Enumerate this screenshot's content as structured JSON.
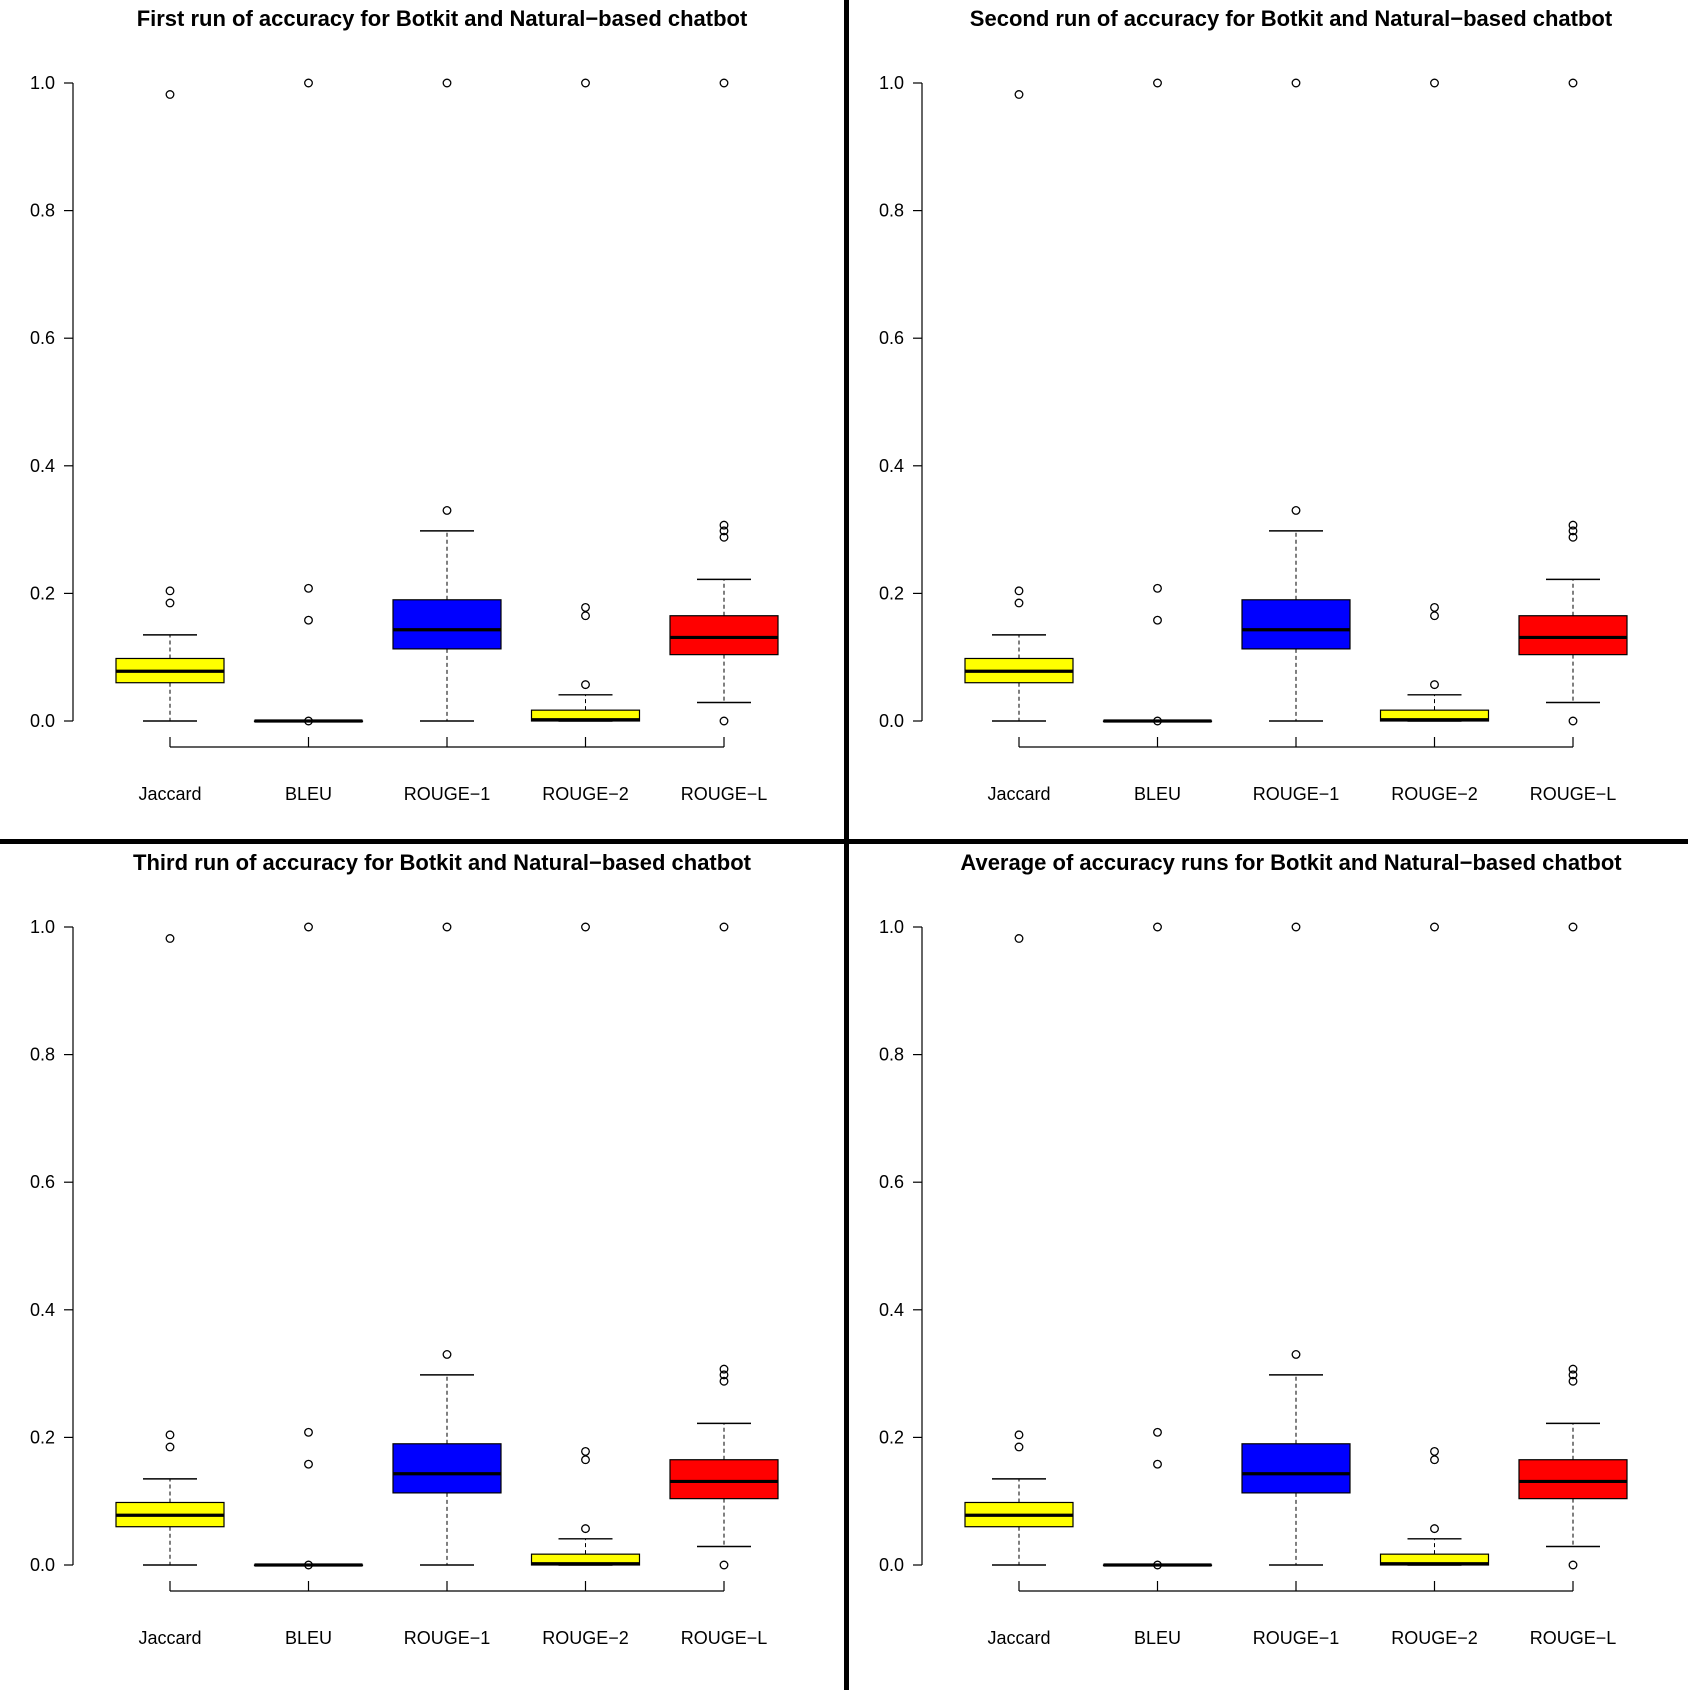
{
  "chart_data": [
    {
      "type": "box",
      "title": "First run of accuracy for Botkit and Natural−based chatbot",
      "categories": [
        "Jaccard",
        "BLEU",
        "ROUGE−1",
        "ROUGE−2",
        "ROUGE−L"
      ],
      "ylim": [
        0,
        1
      ],
      "yticks": [
        "0.0",
        "0.2",
        "0.4",
        "0.6",
        "0.8",
        "1.0"
      ],
      "colors": [
        "#ffff00",
        "#ffffff",
        "#0000ff",
        "#ffff00",
        "#ff0000"
      ],
      "boxes": [
        {
          "min": 0.0,
          "q1": 0.06,
          "median": 0.078,
          "q3": 0.098,
          "max": 0.135,
          "outliers": [
            0.185,
            0.204,
            0.982
          ]
        },
        {
          "min": 0.0,
          "q1": 0.0,
          "median": 0.0,
          "q3": 0.0,
          "max": 0.0,
          "outliers": [
            0.0,
            0.158,
            0.208,
            1.0
          ]
        },
        {
          "min": 0.0,
          "q1": 0.113,
          "median": 0.143,
          "q3": 0.19,
          "max": 0.298,
          "outliers": [
            0.33,
            1.0
          ]
        },
        {
          "min": 0.0,
          "q1": 0.0,
          "median": 0.002,
          "q3": 0.017,
          "max": 0.041,
          "outliers": [
            0.057,
            0.165,
            0.178,
            1.0
          ]
        },
        {
          "min": 0.029,
          "q1": 0.104,
          "median": 0.131,
          "q3": 0.165,
          "max": 0.222,
          "outliers": [
            0.0,
            0.288,
            0.298,
            0.307,
            1.0
          ]
        }
      ]
    },
    {
      "type": "box",
      "title": "Second run of accuracy for Botkit and Natural−based chatbot",
      "categories": [
        "Jaccard",
        "BLEU",
        "ROUGE−1",
        "ROUGE−2",
        "ROUGE−L"
      ],
      "ylim": [
        0,
        1
      ],
      "yticks": [
        "0.0",
        "0.2",
        "0.4",
        "0.6",
        "0.8",
        "1.0"
      ],
      "colors": [
        "#ffff00",
        "#ffffff",
        "#0000ff",
        "#ffff00",
        "#ff0000"
      ],
      "boxes": [
        {
          "min": 0.0,
          "q1": 0.06,
          "median": 0.078,
          "q3": 0.098,
          "max": 0.135,
          "outliers": [
            0.185,
            0.204,
            0.982
          ]
        },
        {
          "min": 0.0,
          "q1": 0.0,
          "median": 0.0,
          "q3": 0.0,
          "max": 0.0,
          "outliers": [
            0.0,
            0.158,
            0.208,
            1.0
          ]
        },
        {
          "min": 0.0,
          "q1": 0.113,
          "median": 0.143,
          "q3": 0.19,
          "max": 0.298,
          "outliers": [
            0.33,
            1.0
          ]
        },
        {
          "min": 0.0,
          "q1": 0.0,
          "median": 0.002,
          "q3": 0.017,
          "max": 0.041,
          "outliers": [
            0.057,
            0.165,
            0.178,
            1.0
          ]
        },
        {
          "min": 0.029,
          "q1": 0.104,
          "median": 0.131,
          "q3": 0.165,
          "max": 0.222,
          "outliers": [
            0.0,
            0.288,
            0.298,
            0.307,
            1.0
          ]
        }
      ]
    },
    {
      "type": "box",
      "title": "Third run of accuracy for Botkit and Natural−based chatbot",
      "categories": [
        "Jaccard",
        "BLEU",
        "ROUGE−1",
        "ROUGE−2",
        "ROUGE−L"
      ],
      "ylim": [
        0,
        1
      ],
      "yticks": [
        "0.0",
        "0.2",
        "0.4",
        "0.6",
        "0.8",
        "1.0"
      ],
      "colors": [
        "#ffff00",
        "#ffffff",
        "#0000ff",
        "#ffff00",
        "#ff0000"
      ],
      "boxes": [
        {
          "min": 0.0,
          "q1": 0.06,
          "median": 0.078,
          "q3": 0.098,
          "max": 0.135,
          "outliers": [
            0.185,
            0.204,
            0.982
          ]
        },
        {
          "min": 0.0,
          "q1": 0.0,
          "median": 0.0,
          "q3": 0.0,
          "max": 0.0,
          "outliers": [
            0.0,
            0.158,
            0.208,
            1.0
          ]
        },
        {
          "min": 0.0,
          "q1": 0.113,
          "median": 0.143,
          "q3": 0.19,
          "max": 0.298,
          "outliers": [
            0.33,
            1.0
          ]
        },
        {
          "min": 0.0,
          "q1": 0.0,
          "median": 0.002,
          "q3": 0.017,
          "max": 0.041,
          "outliers": [
            0.057,
            0.165,
            0.178,
            1.0
          ]
        },
        {
          "min": 0.029,
          "q1": 0.104,
          "median": 0.131,
          "q3": 0.165,
          "max": 0.222,
          "outliers": [
            0.0,
            0.288,
            0.298,
            0.307,
            1.0
          ]
        }
      ]
    },
    {
      "type": "box",
      "title": "Average of accuracy runs for Botkit and Natural−based chatbot",
      "categories": [
        "Jaccard",
        "BLEU",
        "ROUGE−1",
        "ROUGE−2",
        "ROUGE−L"
      ],
      "ylim": [
        0,
        1
      ],
      "yticks": [
        "0.0",
        "0.2",
        "0.4",
        "0.6",
        "0.8",
        "1.0"
      ],
      "colors": [
        "#ffff00",
        "#ffffff",
        "#0000ff",
        "#ffff00",
        "#ff0000"
      ],
      "boxes": [
        {
          "min": 0.0,
          "q1": 0.06,
          "median": 0.078,
          "q3": 0.098,
          "max": 0.135,
          "outliers": [
            0.185,
            0.204,
            0.982
          ]
        },
        {
          "min": 0.0,
          "q1": 0.0,
          "median": 0.0,
          "q3": 0.0,
          "max": 0.0,
          "outliers": [
            0.0,
            0.158,
            0.208,
            1.0
          ]
        },
        {
          "min": 0.0,
          "q1": 0.113,
          "median": 0.143,
          "q3": 0.19,
          "max": 0.298,
          "outliers": [
            0.33,
            1.0
          ]
        },
        {
          "min": 0.0,
          "q1": 0.0,
          "median": 0.002,
          "q3": 0.017,
          "max": 0.041,
          "outliers": [
            0.057,
            0.165,
            0.178,
            1.0
          ]
        },
        {
          "min": 0.029,
          "q1": 0.104,
          "median": 0.131,
          "q3": 0.165,
          "max": 0.222,
          "outliers": [
            0.0,
            0.288,
            0.298,
            0.307,
            1.0
          ]
        }
      ]
    }
  ]
}
